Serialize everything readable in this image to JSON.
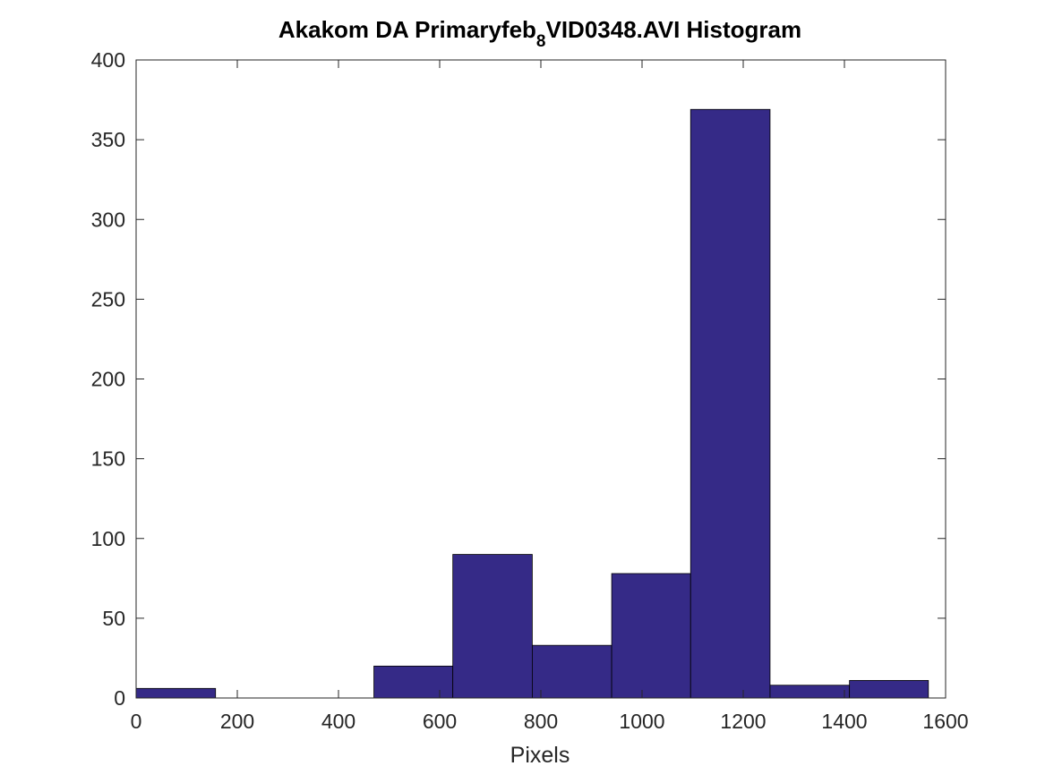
{
  "chart_data": {
    "type": "bar",
    "title_parts": {
      "before_subscript": "Akakom DA Primaryfeb",
      "subscript": "8",
      "after_subscript": "VID0348.AVI Histogram"
    },
    "xlabel": "Pixels",
    "ylabel": "",
    "xlim": [
      0,
      1600
    ],
    "ylim": [
      0,
      400
    ],
    "x_ticks": [
      0,
      200,
      400,
      600,
      800,
      1000,
      1200,
      1400,
      1600
    ],
    "y_ticks": [
      0,
      50,
      100,
      150,
      200,
      250,
      300,
      350,
      400
    ],
    "bin_edges": [
      0,
      157,
      313,
      470,
      626,
      783,
      940,
      1096,
      1253,
      1410,
      1566
    ],
    "values": [
      6,
      0,
      0,
      20,
      90,
      33,
      78,
      369,
      8,
      11
    ],
    "grid": false,
    "bar_color": "#352a87",
    "edge_color": "#000000"
  }
}
